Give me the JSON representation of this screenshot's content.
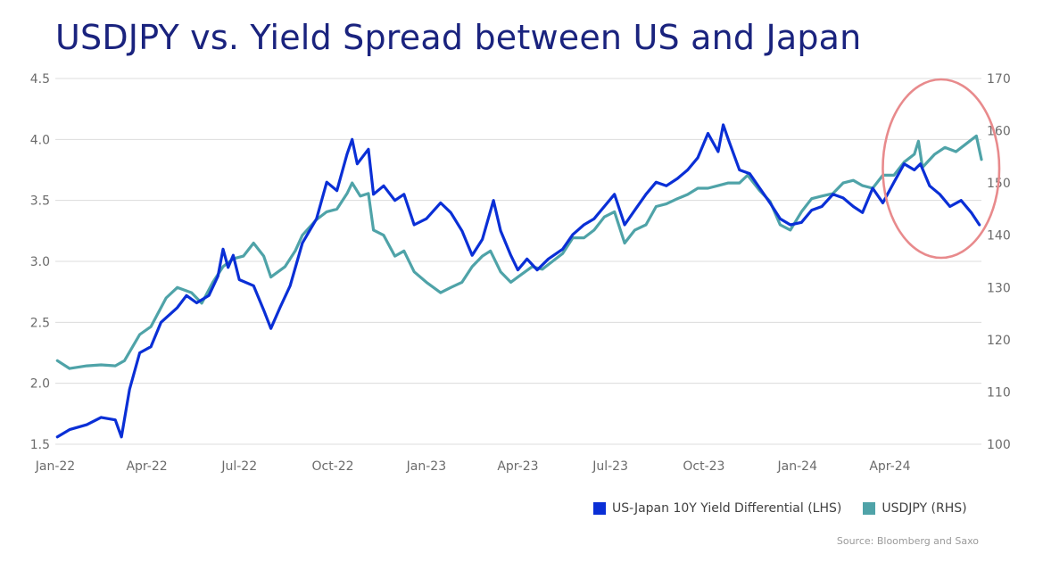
{
  "chart_data": {
    "type": "line",
    "title": "USDJPY vs. Yield Spread between US and Japan",
    "x_tick_labels": [
      "Jan-22",
      "Apr-22",
      "Jul-22",
      "Oct-22",
      "Jan-23",
      "Apr-23",
      "Jul-23",
      "Oct-23",
      "Jan-24",
      "Apr-24"
    ],
    "x_range": [
      "2022-01-01",
      "2024-06-30"
    ],
    "y_left": {
      "range": [
        1.5,
        4.5
      ],
      "ticks": [
        "1.5",
        "2.0",
        "2.5",
        "3.0",
        "3.5",
        "4.0",
        "4.5"
      ]
    },
    "y_right": {
      "range": [
        100,
        170
      ],
      "ticks": [
        "100",
        "110",
        "120",
        "130",
        "140",
        "150",
        "160",
        "170"
      ]
    },
    "grid": "horizontal",
    "legend_position": "bottom-right",
    "series": [
      {
        "name": "US-Japan 10Y Yield Differential (LHS)",
        "axis": "left",
        "color": "#0a2fd6",
        "points": [
          [
            "2022-01-03",
            1.56
          ],
          [
            "2022-01-15",
            1.62
          ],
          [
            "2022-02-01",
            1.66
          ],
          [
            "2022-02-15",
            1.72
          ],
          [
            "2022-03-01",
            1.7
          ],
          [
            "2022-03-07",
            1.56
          ],
          [
            "2022-03-15",
            1.95
          ],
          [
            "2022-03-25",
            2.25
          ],
          [
            "2022-04-05",
            2.3
          ],
          [
            "2022-04-15",
            2.5
          ],
          [
            "2022-05-01",
            2.62
          ],
          [
            "2022-05-10",
            2.72
          ],
          [
            "2022-05-20",
            2.66
          ],
          [
            "2022-06-01",
            2.72
          ],
          [
            "2022-06-10",
            2.88
          ],
          [
            "2022-06-15",
            3.1
          ],
          [
            "2022-06-20",
            2.95
          ],
          [
            "2022-06-25",
            3.05
          ],
          [
            "2022-07-01",
            2.85
          ],
          [
            "2022-07-15",
            2.8
          ],
          [
            "2022-07-25",
            2.6
          ],
          [
            "2022-08-01",
            2.45
          ],
          [
            "2022-08-10",
            2.62
          ],
          [
            "2022-08-20",
            2.8
          ],
          [
            "2022-09-01",
            3.15
          ],
          [
            "2022-09-15",
            3.35
          ],
          [
            "2022-09-25",
            3.65
          ],
          [
            "2022-10-05",
            3.58
          ],
          [
            "2022-10-15",
            3.88
          ],
          [
            "2022-10-20",
            4.0
          ],
          [
            "2022-10-25",
            3.8
          ],
          [
            "2022-11-05",
            3.92
          ],
          [
            "2022-11-10",
            3.55
          ],
          [
            "2022-11-20",
            3.62
          ],
          [
            "2022-12-01",
            3.5
          ],
          [
            "2022-12-10",
            3.55
          ],
          [
            "2022-12-20",
            3.3
          ],
          [
            "2023-01-01",
            3.35
          ],
          [
            "2023-01-15",
            3.48
          ],
          [
            "2023-01-25",
            3.4
          ],
          [
            "2023-02-05",
            3.25
          ],
          [
            "2023-02-15",
            3.05
          ],
          [
            "2023-02-25",
            3.18
          ],
          [
            "2023-03-08",
            3.5
          ],
          [
            "2023-03-15",
            3.25
          ],
          [
            "2023-03-25",
            3.05
          ],
          [
            "2023-04-01",
            2.93
          ],
          [
            "2023-04-10",
            3.02
          ],
          [
            "2023-04-20",
            2.93
          ],
          [
            "2023-05-01",
            3.02
          ],
          [
            "2023-05-15",
            3.1
          ],
          [
            "2023-05-25",
            3.22
          ],
          [
            "2023-06-05",
            3.3
          ],
          [
            "2023-06-15",
            3.35
          ],
          [
            "2023-06-25",
            3.45
          ],
          [
            "2023-07-05",
            3.55
          ],
          [
            "2023-07-15",
            3.3
          ],
          [
            "2023-07-25",
            3.42
          ],
          [
            "2023-08-05",
            3.55
          ],
          [
            "2023-08-15",
            3.65
          ],
          [
            "2023-08-25",
            3.62
          ],
          [
            "2023-09-05",
            3.68
          ],
          [
            "2023-09-15",
            3.75
          ],
          [
            "2023-09-25",
            3.85
          ],
          [
            "2023-10-05",
            4.05
          ],
          [
            "2023-10-15",
            3.9
          ],
          [
            "2023-10-20",
            4.12
          ],
          [
            "2023-10-25",
            4.0
          ],
          [
            "2023-11-05",
            3.75
          ],
          [
            "2023-11-15",
            3.72
          ],
          [
            "2023-11-25",
            3.6
          ],
          [
            "2023-12-05",
            3.48
          ],
          [
            "2023-12-15",
            3.35
          ],
          [
            "2023-12-25",
            3.3
          ],
          [
            "2024-01-05",
            3.32
          ],
          [
            "2024-01-15",
            3.42
          ],
          [
            "2024-01-25",
            3.45
          ],
          [
            "2024-02-05",
            3.55
          ],
          [
            "2024-02-15",
            3.52
          ],
          [
            "2024-02-25",
            3.45
          ],
          [
            "2024-03-05",
            3.4
          ],
          [
            "2024-03-15",
            3.6
          ],
          [
            "2024-03-25",
            3.48
          ],
          [
            "2024-04-05",
            3.65
          ],
          [
            "2024-04-15",
            3.8
          ],
          [
            "2024-04-25",
            3.75
          ],
          [
            "2024-05-01",
            3.8
          ],
          [
            "2024-05-10",
            3.62
          ],
          [
            "2024-05-20",
            3.55
          ],
          [
            "2024-05-30",
            3.45
          ],
          [
            "2024-06-10",
            3.5
          ],
          [
            "2024-06-20",
            3.4
          ],
          [
            "2024-06-28",
            3.3
          ]
        ]
      },
      {
        "name": "USDJPY (RHS)",
        "axis": "right",
        "color": "#4fa3a8",
        "points": [
          [
            "2022-01-03",
            116
          ],
          [
            "2022-01-15",
            114.5
          ],
          [
            "2022-02-01",
            115
          ],
          [
            "2022-02-15",
            115.2
          ],
          [
            "2022-03-01",
            115
          ],
          [
            "2022-03-10",
            116
          ],
          [
            "2022-03-25",
            121
          ],
          [
            "2022-04-05",
            122.5
          ],
          [
            "2022-04-20",
            128
          ],
          [
            "2022-05-01",
            130
          ],
          [
            "2022-05-15",
            129
          ],
          [
            "2022-05-25",
            127
          ],
          [
            "2022-06-05",
            131
          ],
          [
            "2022-06-15",
            134
          ],
          [
            "2022-06-25",
            135.5
          ],
          [
            "2022-07-05",
            136
          ],
          [
            "2022-07-15",
            138.5
          ],
          [
            "2022-07-25",
            136
          ],
          [
            "2022-08-01",
            132
          ],
          [
            "2022-08-15",
            134
          ],
          [
            "2022-08-25",
            137
          ],
          [
            "2022-09-01",
            140
          ],
          [
            "2022-09-15",
            143
          ],
          [
            "2022-09-25",
            144.5
          ],
          [
            "2022-10-05",
            145
          ],
          [
            "2022-10-15",
            148
          ],
          [
            "2022-10-20",
            150
          ],
          [
            "2022-10-28",
            147.5
          ],
          [
            "2022-11-05",
            148
          ],
          [
            "2022-11-10",
            141
          ],
          [
            "2022-11-20",
            140
          ],
          [
            "2022-12-01",
            136
          ],
          [
            "2022-12-10",
            137
          ],
          [
            "2022-12-20",
            133
          ],
          [
            "2023-01-01",
            131
          ],
          [
            "2023-01-15",
            129
          ],
          [
            "2023-01-25",
            130
          ],
          [
            "2023-02-05",
            131
          ],
          [
            "2023-02-15",
            134
          ],
          [
            "2023-02-25",
            136
          ],
          [
            "2023-03-05",
            137
          ],
          [
            "2023-03-15",
            133
          ],
          [
            "2023-03-25",
            131
          ],
          [
            "2023-04-01",
            132
          ],
          [
            "2023-04-15",
            134
          ],
          [
            "2023-04-25",
            133.5
          ],
          [
            "2023-05-05",
            135
          ],
          [
            "2023-05-15",
            136.5
          ],
          [
            "2023-05-25",
            139.5
          ],
          [
            "2023-06-05",
            139.5
          ],
          [
            "2023-06-15",
            141
          ],
          [
            "2023-06-25",
            143.5
          ],
          [
            "2023-07-05",
            144.5
          ],
          [
            "2023-07-15",
            138.5
          ],
          [
            "2023-07-25",
            141
          ],
          [
            "2023-08-05",
            142
          ],
          [
            "2023-08-15",
            145.5
          ],
          [
            "2023-08-25",
            146
          ],
          [
            "2023-09-05",
            147
          ],
          [
            "2023-09-15",
            147.8
          ],
          [
            "2023-09-25",
            149
          ],
          [
            "2023-10-05",
            149
          ],
          [
            "2023-10-15",
            149.5
          ],
          [
            "2023-10-25",
            150
          ],
          [
            "2023-11-05",
            150
          ],
          [
            "2023-11-13",
            151.5
          ],
          [
            "2023-11-25",
            148.5
          ],
          [
            "2023-12-05",
            146.5
          ],
          [
            "2023-12-15",
            142
          ],
          [
            "2023-12-25",
            141
          ],
          [
            "2024-01-05",
            144.5
          ],
          [
            "2024-01-15",
            147
          ],
          [
            "2024-01-25",
            147.5
          ],
          [
            "2024-02-05",
            148
          ],
          [
            "2024-02-15",
            150
          ],
          [
            "2024-02-25",
            150.5
          ],
          [
            "2024-03-05",
            149.5
          ],
          [
            "2024-03-15",
            149
          ],
          [
            "2024-03-25",
            151.5
          ],
          [
            "2024-04-05",
            151.5
          ],
          [
            "2024-04-15",
            154
          ],
          [
            "2024-04-25",
            155.5
          ],
          [
            "2024-04-29",
            158
          ],
          [
            "2024-05-03",
            153
          ],
          [
            "2024-05-15",
            155.5
          ],
          [
            "2024-05-25",
            156.8
          ],
          [
            "2024-06-05",
            156
          ],
          [
            "2024-06-15",
            157.5
          ],
          [
            "2024-06-25",
            159
          ],
          [
            "2024-06-30",
            154.5
          ]
        ]
      }
    ],
    "annotations": [
      {
        "type": "ellipse",
        "color": "#e88a8c",
        "around": [
          "2024-04-01",
          "2024-06-30"
        ]
      }
    ],
    "source": "Source: Bloomberg and Saxo"
  }
}
